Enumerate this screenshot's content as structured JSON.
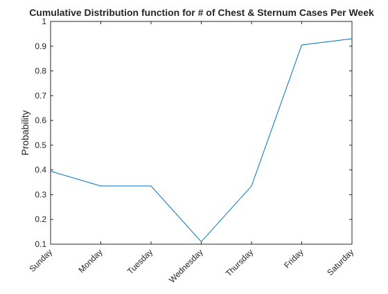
{
  "chart_data": {
    "type": "line",
    "title": "Cumulative Distribution function for # of Chest & Sternum Cases Per Week",
    "xlabel": "",
    "ylabel": "Probability",
    "categories": [
      "Sunday",
      "Monday",
      "Tuesday",
      "Wednesday",
      "Thursday",
      "Friday",
      "Saturday"
    ],
    "series": [
      {
        "values": [
          0.395,
          0.335,
          0.335,
          0.11,
          0.335,
          0.905,
          0.93
        ]
      }
    ],
    "ylim": [
      0.1,
      1
    ],
    "yticks": [
      "0.1",
      "0.2",
      "0.3",
      "0.4",
      "0.5",
      "0.6",
      "0.7",
      "0.8",
      "0.9",
      "1"
    ],
    "grid": false,
    "colors": {
      "series": "#0072bd",
      "axis": "#262626"
    }
  }
}
